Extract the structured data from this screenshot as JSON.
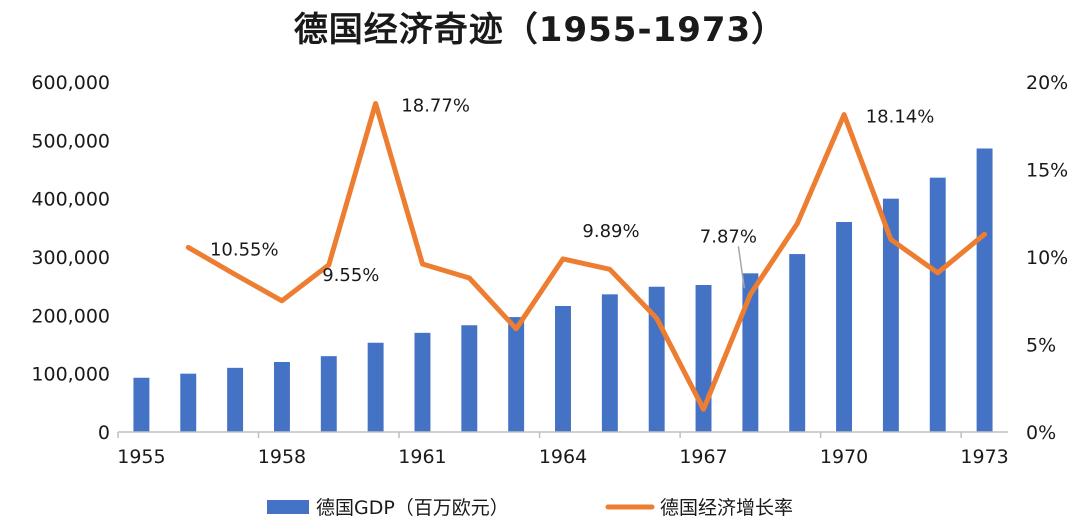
{
  "chart_data": {
    "type": "bar+line",
    "title": "德国经济奇迹（1955-1973）",
    "x": [
      1955,
      1956,
      1957,
      1958,
      1959,
      1960,
      1961,
      1962,
      1963,
      1964,
      1965,
      1966,
      1967,
      1968,
      1969,
      1970,
      1971,
      1972,
      1973
    ],
    "x_tick_labels": [
      "1955",
      "1958",
      "1961",
      "1964",
      "1967",
      "1970",
      "1973"
    ],
    "y_left": {
      "range": [
        0,
        600000
      ],
      "tick_labels": [
        "0",
        "100,000",
        "200,000",
        "300,000",
        "400,000",
        "500,000",
        "600,000"
      ]
    },
    "y_right": {
      "range": [
        0,
        20
      ],
      "unit": "%",
      "tick_labels": [
        "0%",
        "5%",
        "10%",
        "15%",
        "20%"
      ]
    },
    "series": [
      {
        "name": "德国GDP（百万欧元）",
        "type": "bar",
        "axis": "left",
        "color": "#4472C4",
        "values": [
          93000,
          100000,
          110000,
          120000,
          130000,
          153000,
          170000,
          183000,
          197000,
          216000,
          236000,
          249000,
          252000,
          272000,
          305000,
          360000,
          400000,
          436000,
          486000
        ]
      },
      {
        "name": "德国经济增长率",
        "type": "line",
        "axis": "right",
        "color": "#ED7D31",
        "values": [
          null,
          10.55,
          9.0,
          7.5,
          9.55,
          18.77,
          9.6,
          8.8,
          5.9,
          9.89,
          9.3,
          6.5,
          1.3,
          7.87,
          11.9,
          18.14,
          11.0,
          9.1,
          11.3
        ]
      }
    ],
    "data_labels": [
      {
        "text": "10.55%"
      },
      {
        "text": "18.77%"
      },
      {
        "text": "9.55%"
      },
      {
        "text": "9.89%"
      },
      {
        "text": "7.87%"
      },
      {
        "text": "18.14%"
      }
    ],
    "legend_position": "bottom",
    "grid": false
  }
}
